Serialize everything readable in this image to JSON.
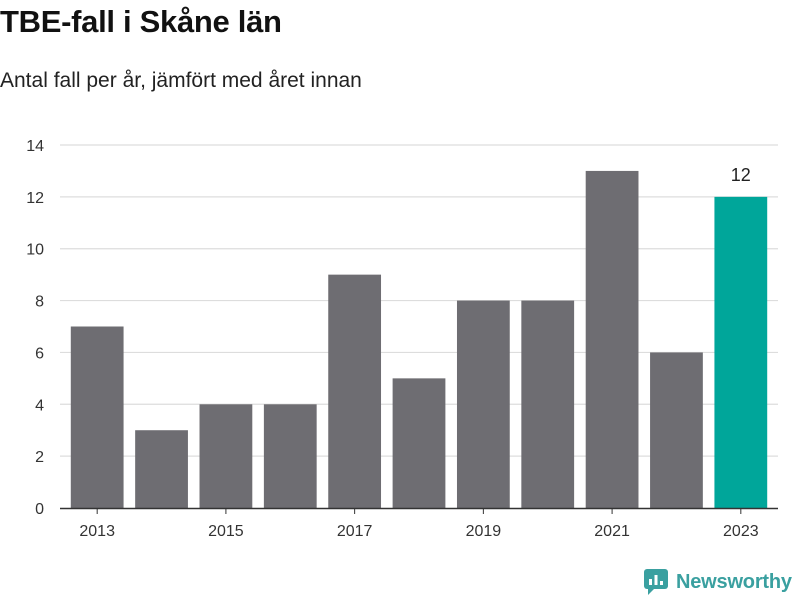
{
  "title": "TBE-fall i Skåne län",
  "subtitle": "Antal fall per år, jämfört med året innan",
  "brand": {
    "name": "Newsworthy",
    "logo_icon": "newsworthy-logo-icon",
    "color": "#3aa0a0"
  },
  "chart_data": {
    "type": "bar",
    "categories": [
      "2013",
      "2014",
      "2015",
      "2016",
      "2017",
      "2018",
      "2019",
      "2020",
      "2021",
      "2022",
      "2023"
    ],
    "x_tick_labels": [
      "2013",
      "2015",
      "2017",
      "2019",
      "2021",
      "2023"
    ],
    "values": [
      7,
      3,
      4,
      4,
      9,
      5,
      8,
      8,
      13,
      6,
      12
    ],
    "ylim": [
      0,
      14
    ],
    "y_ticks": [
      0,
      2,
      4,
      6,
      8,
      10,
      12,
      14
    ],
    "grid": true,
    "highlight": {
      "category": "2023",
      "label": "12"
    },
    "colors": {
      "bar": "#6e6d72",
      "highlight": "#00a69a",
      "grid": "#dddddd",
      "axis": "#333333"
    }
  }
}
